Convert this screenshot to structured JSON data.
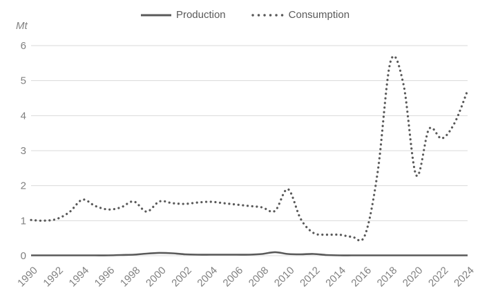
{
  "colors": {
    "series": "#595959",
    "grid": "#d9d9d9",
    "axis_text": "#808080",
    "legend_text": "#595959",
    "background": "#ffffff"
  },
  "chart_data": {
    "type": "line",
    "title": "",
    "ylabel": "Mt",
    "xlabel": "",
    "ylim": [
      0,
      6
    ],
    "yticks": [
      0,
      1,
      2,
      3,
      4,
      5,
      6
    ],
    "xtick_labels": [
      "1990",
      "1992",
      "1994",
      "1996",
      "1998",
      "2000",
      "2002",
      "2004",
      "2006",
      "2008",
      "2010",
      "2012",
      "2014",
      "2016",
      "2018",
      "2020",
      "2022",
      "2024"
    ],
    "years": [
      1990,
      1991,
      1992,
      1993,
      1994,
      1995,
      1996,
      1997,
      1998,
      1999,
      2000,
      2001,
      2002,
      2003,
      2004,
      2005,
      2006,
      2007,
      2008,
      2009,
      2010,
      2011,
      2012,
      2013,
      2014,
      2015,
      2016,
      2017,
      2018,
      2019,
      2020,
      2021,
      2022,
      2023,
      2024
    ],
    "series": [
      {
        "name": "Production",
        "line_style": "solid",
        "values": [
          0.01,
          0.01,
          0.01,
          0.01,
          0.01,
          0.01,
          0.01,
          0.02,
          0.03,
          0.06,
          0.08,
          0.07,
          0.04,
          0.03,
          0.03,
          0.03,
          0.03,
          0.03,
          0.05,
          0.1,
          0.05,
          0.04,
          0.05,
          0.02,
          0.01,
          0.01,
          0.01,
          0.01,
          0.01,
          0.01,
          0.01,
          0.01,
          0.01,
          0.01,
          0.01
        ]
      },
      {
        "name": "Consumption",
        "line_style": "dotted",
        "values": [
          1.02,
          1.0,
          1.05,
          1.25,
          1.6,
          1.42,
          1.32,
          1.38,
          1.55,
          1.26,
          1.55,
          1.5,
          1.48,
          1.52,
          1.54,
          1.5,
          1.46,
          1.42,
          1.38,
          1.28,
          1.9,
          1.05,
          0.65,
          0.6,
          0.6,
          0.54,
          0.58,
          2.4,
          5.55,
          4.9,
          2.3,
          3.62,
          3.35,
          3.8,
          4.72
        ]
      }
    ],
    "legend_position": "top-center",
    "grid": "horizontal"
  }
}
